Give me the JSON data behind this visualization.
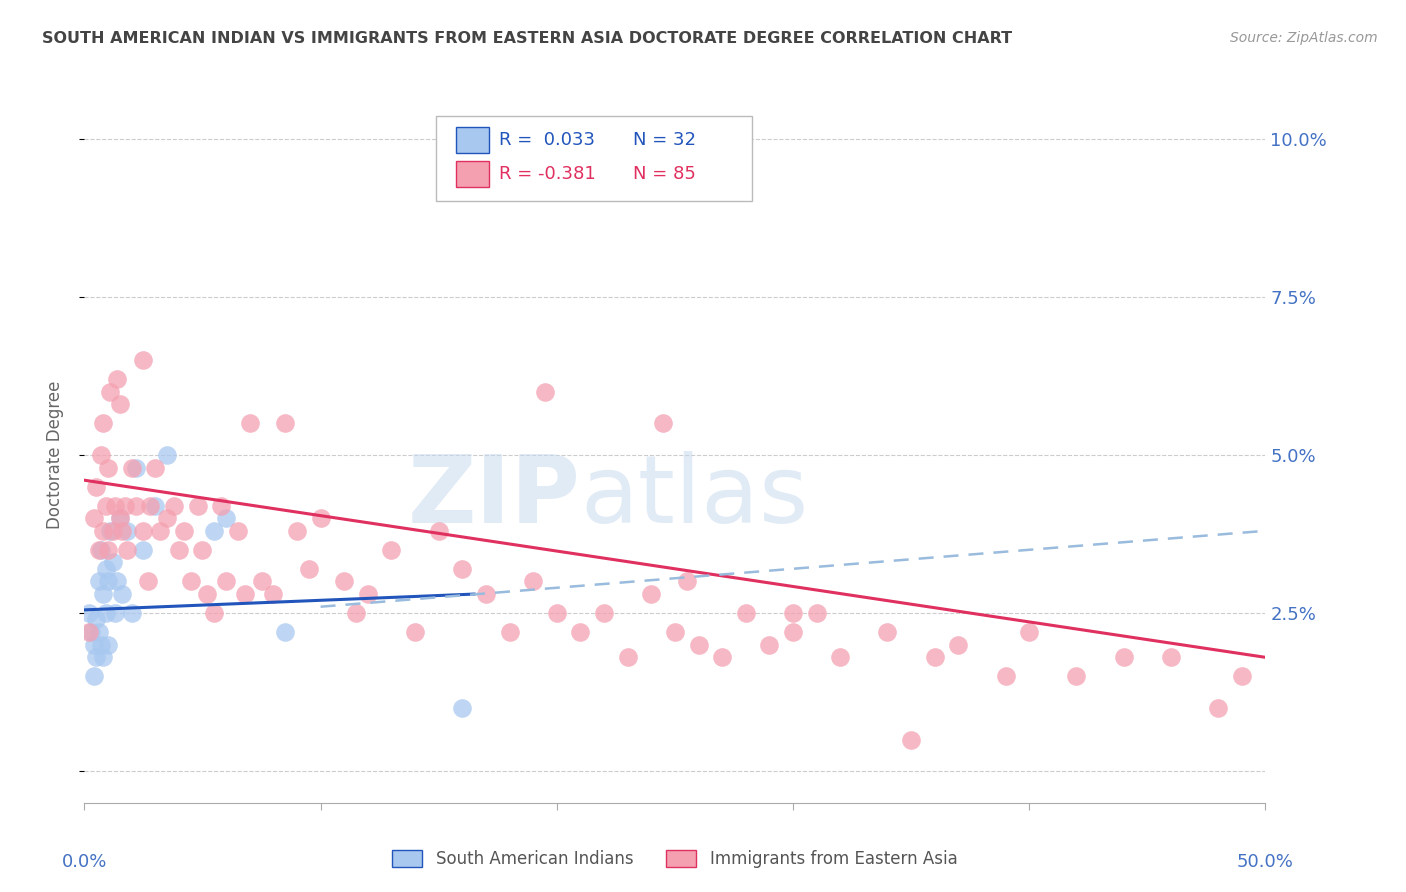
{
  "title": "SOUTH AMERICAN INDIAN VS IMMIGRANTS FROM EASTERN ASIA DOCTORATE DEGREE CORRELATION CHART",
  "source": "Source: ZipAtlas.com",
  "ylabel": "Doctorate Degree",
  "ytick_labels": [
    "",
    "2.5%",
    "5.0%",
    "7.5%",
    "10.0%"
  ],
  "ytick_values": [
    0.0,
    0.025,
    0.05,
    0.075,
    0.1
  ],
  "xlim": [
    0.0,
    0.5
  ],
  "ylim": [
    -0.005,
    0.105
  ],
  "color_blue": "#A8C8F0",
  "color_pink": "#F4A0B0",
  "color_line_blue": "#2255BB",
  "color_line_pink": "#E03060",
  "color_dashed_blue": "#99BBDD",
  "color_title": "#444444",
  "color_source": "#999999",
  "color_axis_labels": "#4472C4",
  "color_ytick_labels": "#4472C4",
  "legend_label1": "South American Indians",
  "legend_label2": "Immigrants from Eastern Asia",
  "blue_line_x": [
    0.0,
    0.165
  ],
  "blue_line_y": [
    0.0255,
    0.028
  ],
  "pink_line_x": [
    0.0,
    0.5
  ],
  "pink_line_y": [
    0.046,
    0.018
  ],
  "dashed_line_x": [
    0.1,
    0.5
  ],
  "dashed_line_y": [
    0.026,
    0.038
  ],
  "blue_x": [
    0.002,
    0.003,
    0.004,
    0.004,
    0.005,
    0.005,
    0.006,
    0.006,
    0.007,
    0.007,
    0.008,
    0.008,
    0.009,
    0.009,
    0.01,
    0.01,
    0.011,
    0.012,
    0.013,
    0.014,
    0.015,
    0.016,
    0.018,
    0.02,
    0.022,
    0.025,
    0.03,
    0.035,
    0.055,
    0.06,
    0.085,
    0.16
  ],
  "blue_y": [
    0.025,
    0.022,
    0.02,
    0.015,
    0.024,
    0.018,
    0.022,
    0.03,
    0.02,
    0.035,
    0.028,
    0.018,
    0.032,
    0.025,
    0.03,
    0.02,
    0.038,
    0.033,
    0.025,
    0.03,
    0.04,
    0.028,
    0.038,
    0.025,
    0.048,
    0.035,
    0.042,
    0.05,
    0.038,
    0.04,
    0.022,
    0.01
  ],
  "pink_x": [
    0.002,
    0.004,
    0.005,
    0.006,
    0.007,
    0.008,
    0.008,
    0.009,
    0.01,
    0.01,
    0.011,
    0.012,
    0.013,
    0.014,
    0.015,
    0.015,
    0.016,
    0.017,
    0.018,
    0.02,
    0.022,
    0.025,
    0.025,
    0.027,
    0.028,
    0.03,
    0.032,
    0.035,
    0.038,
    0.04,
    0.042,
    0.045,
    0.048,
    0.05,
    0.052,
    0.055,
    0.058,
    0.06,
    0.065,
    0.068,
    0.07,
    0.075,
    0.08,
    0.085,
    0.09,
    0.095,
    0.1,
    0.11,
    0.115,
    0.12,
    0.13,
    0.14,
    0.15,
    0.16,
    0.17,
    0.18,
    0.19,
    0.2,
    0.21,
    0.22,
    0.23,
    0.24,
    0.25,
    0.26,
    0.27,
    0.28,
    0.29,
    0.3,
    0.31,
    0.32,
    0.34,
    0.36,
    0.37,
    0.39,
    0.4,
    0.42,
    0.44,
    0.46,
    0.48,
    0.49,
    0.195,
    0.245,
    0.255,
    0.3,
    0.35
  ],
  "pink_y": [
    0.022,
    0.04,
    0.045,
    0.035,
    0.05,
    0.038,
    0.055,
    0.042,
    0.035,
    0.048,
    0.06,
    0.038,
    0.042,
    0.062,
    0.04,
    0.058,
    0.038,
    0.042,
    0.035,
    0.048,
    0.042,
    0.038,
    0.065,
    0.03,
    0.042,
    0.048,
    0.038,
    0.04,
    0.042,
    0.035,
    0.038,
    0.03,
    0.042,
    0.035,
    0.028,
    0.025,
    0.042,
    0.03,
    0.038,
    0.028,
    0.055,
    0.03,
    0.028,
    0.055,
    0.038,
    0.032,
    0.04,
    0.03,
    0.025,
    0.028,
    0.035,
    0.022,
    0.038,
    0.032,
    0.028,
    0.022,
    0.03,
    0.025,
    0.022,
    0.025,
    0.018,
    0.028,
    0.022,
    0.02,
    0.018,
    0.025,
    0.02,
    0.022,
    0.025,
    0.018,
    0.022,
    0.018,
    0.02,
    0.015,
    0.022,
    0.015,
    0.018,
    0.018,
    0.01,
    0.015,
    0.06,
    0.055,
    0.03,
    0.025,
    0.005
  ]
}
